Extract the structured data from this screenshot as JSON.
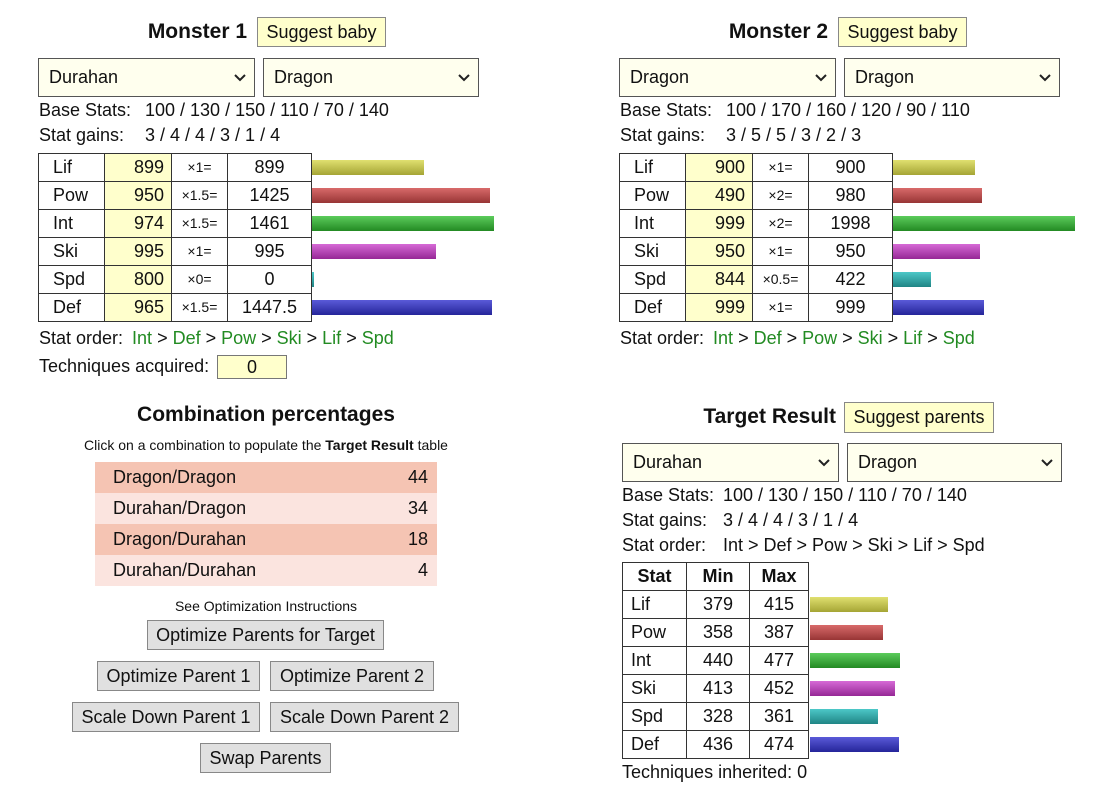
{
  "monster1": {
    "title": "Monster 1",
    "suggest_button": "Suggest baby",
    "main_breed": "Durahan",
    "sub_breed": "Dragon",
    "base_stats_label": "Base Stats:",
    "base_stats": "100 / 130 / 150 / 110 / 70 / 140",
    "stat_gains_label": "Stat gains:",
    "stat_gains": "3 / 4 / 4 / 3 / 1 / 4",
    "stats": [
      [
        "Lif",
        899,
        "×1=",
        899
      ],
      [
        "Pow",
        950,
        "×1.5=",
        1425
      ],
      [
        "Int",
        974,
        "×1.5=",
        1461
      ],
      [
        "Ski",
        995,
        "×1=",
        995
      ],
      [
        "Spd",
        800,
        "×0=",
        0
      ],
      [
        "Def",
        965,
        "×1.5=",
        1447.5
      ]
    ],
    "stat_order_label": "Stat order:",
    "stat_order": [
      "Int",
      "Def",
      "Pow",
      "Ski",
      "Lif",
      "Spd"
    ],
    "separator": ">",
    "techniques_label": "Techniques acquired:",
    "techniques": 0
  },
  "monster2": {
    "title": "Monster 2",
    "suggest_button": "Suggest baby",
    "main_breed": "Dragon",
    "sub_breed": "Dragon",
    "base_stats_label": "Base Stats:",
    "base_stats": "100 / 170 / 160 / 120 / 90 / 110",
    "stat_gains_label": "Stat gains:",
    "stat_gains": "3 / 5 / 5 / 3 / 2 / 3",
    "stats": [
      [
        "Lif",
        900,
        "×1=",
        900
      ],
      [
        "Pow",
        490,
        "×2=",
        980
      ],
      [
        "Int",
        999,
        "×2=",
        1998
      ],
      [
        "Ski",
        950,
        "×1=",
        950
      ],
      [
        "Spd",
        844,
        "×0.5=",
        422
      ],
      [
        "Def",
        999,
        "×1=",
        999
      ]
    ],
    "stat_order_label": "Stat order:",
    "stat_order": [
      "Int",
      "Def",
      "Pow",
      "Ski",
      "Lif",
      "Spd"
    ],
    "separator": ">"
  },
  "combination": {
    "title": "Combination percentages",
    "instruction": [
      "Click on a combination to populate the ",
      "Target Result",
      " table"
    ],
    "rows": [
      [
        "Dragon/Dragon",
        44
      ],
      [
        "Durahan/Dragon",
        34
      ],
      [
        "Dragon/Durahan",
        18
      ],
      [
        "Durahan/Durahan",
        4
      ]
    ],
    "note": "See Optimization Instructions",
    "buttons": [
      "Optimize Parents for Target",
      "Optimize Parent 1",
      "Optimize Parent 2",
      "Scale Down Parent 1",
      "Scale Down Parent 2",
      "Swap Parents"
    ]
  },
  "target": {
    "title": "Target Result",
    "suggest_button": "Suggest parents",
    "main_breed": "Durahan",
    "sub_breed": "Dragon",
    "base_stats_label": "Base Stats:",
    "base_stats": "100 / 130 / 150 / 110 / 70 / 140",
    "stat_gains_label": "Stat gains:",
    "stat_gains": "3 / 4 / 4 / 3 / 1 / 4",
    "stat_order_label": "Stat order:",
    "stat_order": "Int > Def > Pow > Ski > Lif > Spd",
    "headers": [
      "Stat",
      "Min",
      "Max"
    ],
    "rows": [
      [
        "Lif",
        379,
        415
      ],
      [
        "Pow",
        358,
        387
      ],
      [
        "Int",
        440,
        477
      ],
      [
        "Ski",
        413,
        452
      ],
      [
        "Spd",
        328,
        361
      ],
      [
        "Def",
        436,
        474
      ]
    ],
    "techniques": "Techniques inherited: 0"
  },
  "bar_colors": [
    [
      "#e0e070",
      "#a5a535"
    ],
    [
      "#d86a6a",
      "#983535"
    ],
    [
      "#5ccc5c",
      "#238a23"
    ],
    [
      "#d66ad6",
      "#962896"
    ],
    [
      "#4cc8c8",
      "#1f8585"
    ],
    [
      "#5a5ad8",
      "#25259a"
    ]
  ]
}
